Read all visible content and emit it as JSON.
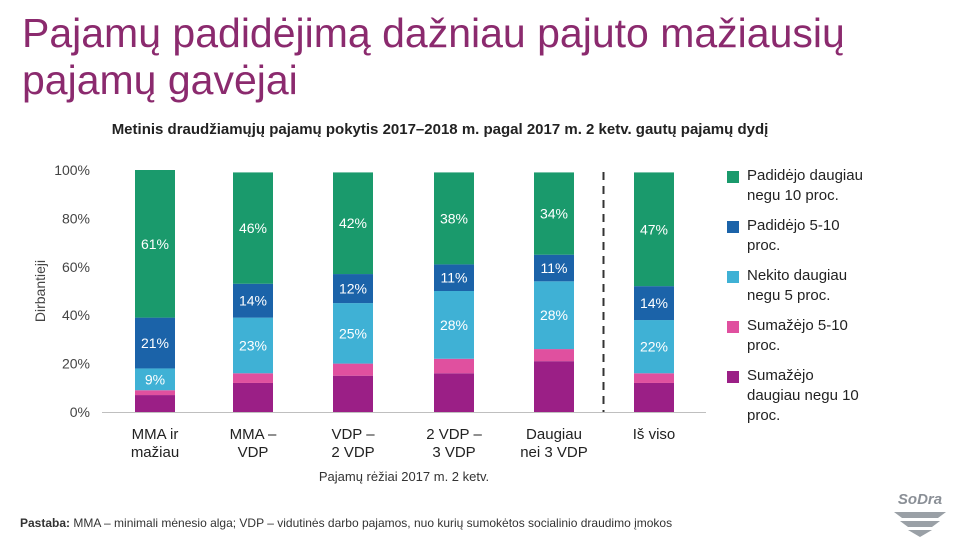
{
  "slide": {
    "title": "Pajamų padidėjimą dažniau pajuto mažiausių pajamų gavėjai",
    "note_label": "Pastaba:",
    "note_text": " MMA – minimali mėnesio alga; VDP – vidutinės darbo pajamos, nuo kurių sumokėtos socialinio draudimo įmokos",
    "logo_text": "SoDra"
  },
  "chart_data": {
    "type": "bar",
    "stacked": true,
    "title": "Metinis draudžiamųjų pajamų pokytis 2017–2018 m. pagal 2017 m. 2 ketv. gautų pajamų dydį",
    "xlabel": "Pajamų rėžiai 2017 m. 2 ketv.",
    "ylabel": "Dirbantieji",
    "ylim": [
      0,
      100
    ],
    "yticks": [
      "0%",
      "20%",
      "40%",
      "60%",
      "80%",
      "100%"
    ],
    "categories": [
      [
        "MMA ir",
        "mažiau"
      ],
      [
        "MMA –",
        "VDP"
      ],
      [
        "VDP –",
        "2 VDP"
      ],
      [
        "2 VDP –",
        "3 VDP"
      ],
      [
        "Daugiau",
        "nei 3 VDP"
      ],
      [
        "Iš viso"
      ]
    ],
    "separator_before_last": true,
    "series": [
      {
        "name": "Sumažėjo daugiau negu 10 proc.",
        "color": "#9b1f86",
        "values": [
          7,
          12,
          15,
          16,
          21,
          12
        ],
        "labels": [
          "",
          "",
          "",
          "",
          "",
          ""
        ]
      },
      {
        "name": "Sumažėjo 5-10 proc.",
        "color": "#e0509f",
        "values": [
          2,
          4,
          5,
          6,
          5,
          4
        ],
        "labels": [
          "",
          "",
          "",
          "",
          "",
          ""
        ]
      },
      {
        "name": "Nekito daugiau negu 5 proc.",
        "color": "#3fb1d5",
        "values": [
          9,
          23,
          25,
          28,
          28,
          22
        ],
        "labels": [
          "9%",
          "23%",
          "25%",
          "28%",
          "28%",
          "22%"
        ]
      },
      {
        "name": "Padidėjo 5-10 proc.",
        "color": "#1b63a9",
        "values": [
          21,
          14,
          12,
          11,
          11,
          14
        ],
        "labels": [
          "21%",
          "14%",
          "12%",
          "11%",
          "11%",
          "14%"
        ]
      },
      {
        "name": "Padidėjo daugiau negu 10 proc.",
        "color": "#1a9a6c",
        "values": [
          61,
          46,
          42,
          38,
          34,
          47
        ],
        "labels": [
          "61%",
          "46%",
          "42%",
          "38%",
          "34%",
          "47%"
        ]
      }
    ],
    "legend": {
      "position": "right",
      "items": [
        {
          "lines": [
            "Padidėjo daugiau",
            "negu 10 proc."
          ],
          "color": "#1a9a6c"
        },
        {
          "lines": [
            "Padidėjo 5-10",
            "proc."
          ],
          "color": "#1b63a9"
        },
        {
          "lines": [
            "Nekito daugiau",
            "negu 5 proc."
          ],
          "color": "#3fb1d5"
        },
        {
          "lines": [
            "Sumažėjo 5-10",
            "proc."
          ],
          "color": "#e0509f"
        },
        {
          "lines": [
            "Sumažėjo",
            "daugiau negu 10",
            "proc."
          ],
          "color": "#9b1f86"
        }
      ]
    },
    "grid": false
  }
}
